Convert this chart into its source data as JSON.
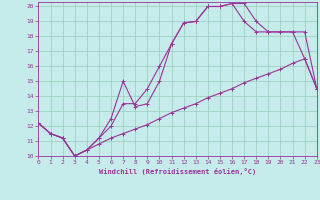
{
  "xlabel": "Windchill (Refroidissement éolien,°C)",
  "bg_color": "#c5ecea",
  "grid_color": "#99ccbb",
  "line_color": "#993399",
  "xlim": [
    0,
    23
  ],
  "ylim": [
    10,
    20.3
  ],
  "xticks": [
    0,
    1,
    2,
    3,
    4,
    5,
    6,
    7,
    8,
    9,
    10,
    11,
    12,
    13,
    14,
    15,
    16,
    17,
    18,
    19,
    20,
    21,
    22,
    23
  ],
  "yticks": [
    10,
    11,
    12,
    13,
    14,
    15,
    16,
    17,
    18,
    19,
    20
  ],
  "line1_x": [
    0,
    1,
    2,
    3,
    4,
    5,
    6,
    7,
    8,
    9,
    10,
    11,
    12,
    13,
    14,
    15,
    16,
    17,
    18,
    19,
    20,
    21,
    22,
    23
  ],
  "line1_y": [
    12.2,
    11.5,
    11.2,
    10.0,
    10.4,
    10.8,
    11.2,
    11.5,
    11.8,
    12.1,
    12.5,
    12.9,
    13.2,
    13.5,
    13.9,
    14.2,
    14.5,
    14.9,
    15.2,
    15.5,
    15.8,
    16.2,
    16.5,
    14.5
  ],
  "line2_x": [
    0,
    1,
    2,
    3,
    4,
    5,
    6,
    7,
    8,
    9,
    10,
    11,
    12,
    13,
    14,
    15,
    16,
    17,
    18,
    19,
    20,
    21,
    22,
    23
  ],
  "line2_y": [
    12.2,
    11.5,
    11.2,
    10.0,
    10.4,
    11.2,
    12.5,
    15.0,
    13.3,
    13.5,
    15.0,
    17.5,
    18.9,
    19.0,
    20.0,
    20.0,
    20.2,
    20.2,
    19.0,
    18.3,
    18.3,
    18.3,
    18.3,
    14.5
  ],
  "line3_x": [
    0,
    1,
    2,
    3,
    4,
    5,
    6,
    7,
    8,
    9,
    10,
    11,
    12,
    13,
    14,
    15,
    16,
    17,
    18,
    19,
    20,
    21,
    22,
    23
  ],
  "line3_y": [
    12.2,
    11.5,
    11.2,
    10.0,
    10.4,
    11.2,
    12.0,
    13.5,
    13.5,
    14.5,
    16.0,
    17.5,
    18.9,
    19.0,
    20.0,
    20.0,
    20.2,
    19.0,
    18.3,
    18.3,
    18.3,
    18.3,
    16.5,
    14.5
  ]
}
